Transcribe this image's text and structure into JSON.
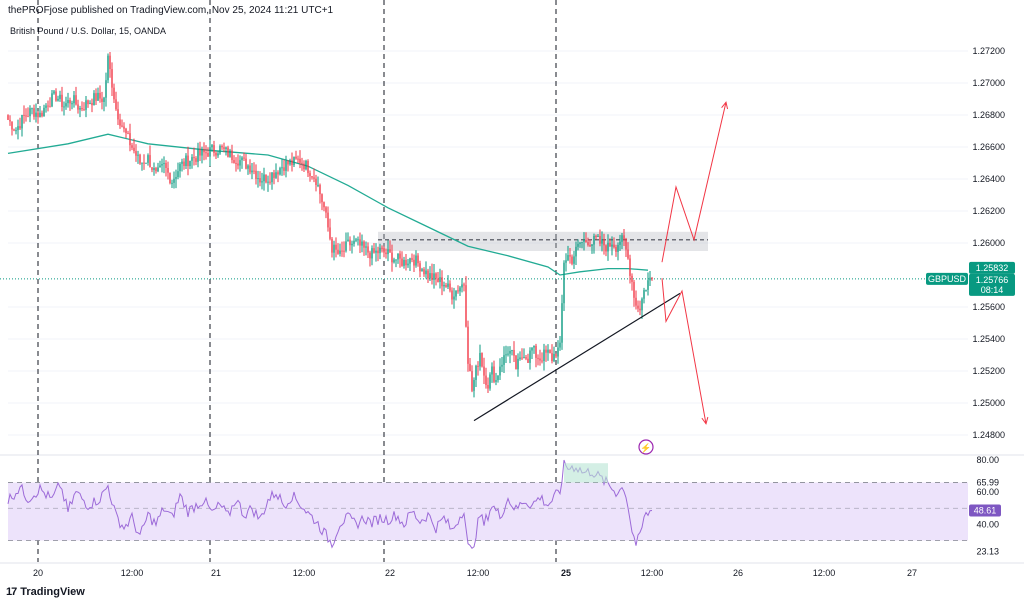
{
  "header": {
    "publisher_line": "thePROFjose published on TradingView.com, Nov 25, 2024 11:21 UTC+1",
    "symbol_line": "British Pound / U.S. Dollar, 15, OANDA"
  },
  "branding": {
    "logo_glyph": "17",
    "name": "TradingView"
  },
  "colors": {
    "up": "#089981",
    "down": "#f23645",
    "ma": "#22ab94",
    "rsi": "#9c6ad8",
    "rsi_band": "#ede3fb",
    "forecast": "#f23645",
    "trendline": "#131722",
    "zone": "#b2b5be",
    "price_tag": "#089981",
    "rsi_tag": "#7e57c2"
  },
  "chart_data": [
    {
      "type": "candlestick",
      "symbol": "GBPUSD",
      "interval": "15",
      "ylim": [
        1.2475,
        1.273
      ],
      "y_ticks": [
        "1.27200",
        "1.27000",
        "1.26800",
        "1.26600",
        "1.26400",
        "1.26200",
        "1.26000",
        "1.25600",
        "1.25400",
        "1.25200",
        "1.25000",
        "1.24800"
      ],
      "x_ticks": [
        {
          "label": "20",
          "bold": false
        },
        {
          "label": "12:00",
          "bold": false
        },
        {
          "label": "21",
          "bold": false
        },
        {
          "label": "12:00",
          "bold": false
        },
        {
          "label": "22",
          "bold": false
        },
        {
          "label": "12:00",
          "bold": false
        },
        {
          "label": "25",
          "bold": true
        },
        {
          "label": "12:00",
          "bold": false
        },
        {
          "label": "26",
          "bold": false
        },
        {
          "label": "12:00",
          "bold": false
        },
        {
          "label": "27",
          "bold": false
        }
      ],
      "session_breaks": [
        "20",
        "21",
        "22",
        "25"
      ],
      "price_path": [
        [
          0,
          1.2677
        ],
        [
          4,
          1.2671
        ],
        [
          8,
          1.2679
        ],
        [
          12,
          1.2683
        ],
        [
          16,
          1.268
        ],
        [
          20,
          1.2688
        ],
        [
          24,
          1.2692
        ],
        [
          28,
          1.2686
        ],
        [
          32,
          1.269
        ],
        [
          36,
          1.2684
        ],
        [
          40,
          1.2688
        ],
        [
          44,
          1.2691
        ],
        [
          48,
          1.269
        ],
        [
          50,
          1.2715
        ],
        [
          52,
          1.27
        ],
        [
          54,
          1.2684
        ],
        [
          58,
          1.267
        ],
        [
          62,
          1.266
        ],
        [
          66,
          1.265
        ],
        [
          70,
          1.2653
        ],
        [
          74,
          1.2642
        ],
        [
          78,
          1.2648
        ],
        [
          82,
          1.2639
        ],
        [
          86,
          1.2648
        ],
        [
          90,
          1.2652
        ],
        [
          94,
          1.2654
        ],
        [
          98,
          1.2656
        ],
        [
          102,
          1.2658
        ],
        [
          106,
          1.2659
        ],
        [
          110,
          1.2656
        ],
        [
          114,
          1.2653
        ],
        [
          118,
          1.265
        ],
        [
          122,
          1.2647
        ],
        [
          126,
          1.264
        ],
        [
          130,
          1.2641
        ],
        [
          134,
          1.2645
        ],
        [
          138,
          1.2649
        ],
        [
          142,
          1.265
        ],
        [
          146,
          1.2652
        ],
        [
          150,
          1.2647
        ],
        [
          154,
          1.264
        ],
        [
          158,
          1.2622
        ],
        [
          162,
          1.2597
        ],
        [
          166,
          1.2592
        ],
        [
          170,
          1.2599
        ],
        [
          174,
          1.26
        ],
        [
          178,
          1.2596
        ],
        [
          182,
          1.2593
        ],
        [
          186,
          1.2595
        ],
        [
          190,
          1.2593
        ],
        [
          194,
          1.259
        ],
        [
          198,
          1.2588
        ],
        [
          202,
          1.2591
        ],
        [
          206,
          1.2586
        ],
        [
          210,
          1.258
        ],
        [
          214,
          1.2577
        ],
        [
          218,
          1.2575
        ],
        [
          222,
          1.2568
        ],
        [
          226,
          1.2573
        ],
        [
          228,
          1.2575
        ],
        [
          230,
          1.2528
        ],
        [
          232,
          1.2508
        ],
        [
          234,
          1.252
        ],
        [
          236,
          1.2532
        ],
        [
          238,
          1.2518
        ],
        [
          240,
          1.2512
        ],
        [
          242,
          1.252
        ],
        [
          244,
          1.2514
        ],
        [
          246,
          1.2524
        ],
        [
          248,
          1.2528
        ],
        [
          250,
          1.2533
        ],
        [
          252,
          1.253
        ],
        [
          254,
          1.2522
        ],
        [
          256,
          1.2526
        ],
        [
          258,
          1.2532
        ],
        [
          260,
          1.2528
        ],
        [
          262,
          1.2534
        ],
        [
          264,
          1.253
        ],
        [
          266,
          1.2528
        ],
        [
          268,
          1.253
        ],
        [
          270,
          1.2531
        ],
        [
          272,
          1.2528
        ],
        [
          274,
          1.2532
        ],
        [
          276,
          1.2534
        ],
        [
          278,
          1.2589
        ],
        [
          280,
          1.2592
        ],
        [
          282,
          1.259
        ],
        [
          284,
          1.2595
        ],
        [
          286,
          1.26
        ],
        [
          288,
          1.2601
        ],
        [
          290,
          1.2602
        ],
        [
          292,
          1.26
        ],
        [
          294,
          1.2602
        ],
        [
          296,
          1.26
        ],
        [
          298,
          1.2599
        ],
        [
          300,
          1.2597
        ],
        [
          302,
          1.2601
        ],
        [
          304,
          1.2598
        ],
        [
          306,
          1.2602
        ],
        [
          308,
          1.26
        ],
        [
          310,
          1.259
        ],
        [
          312,
          1.2576
        ],
        [
          314,
          1.2561
        ],
        [
          316,
          1.256
        ],
        [
          318,
          1.257
        ],
        [
          320,
          1.2576
        ],
        [
          322,
          1.2578
        ]
      ],
      "moving_average": [
        [
          0,
          1.2656
        ],
        [
          30,
          1.2662
        ],
        [
          50,
          1.2668
        ],
        [
          70,
          1.2662
        ],
        [
          100,
          1.2658
        ],
        [
          130,
          1.2655
        ],
        [
          150,
          1.2648
        ],
        [
          170,
          1.2636
        ],
        [
          190,
          1.2622
        ],
        [
          210,
          1.261
        ],
        [
          230,
          1.2598
        ],
        [
          250,
          1.2592
        ],
        [
          270,
          1.2585
        ],
        [
          276,
          1.258
        ],
        [
          286,
          1.2582
        ],
        [
          300,
          1.2584
        ],
        [
          310,
          1.2584
        ],
        [
          320,
          1.2583
        ]
      ],
      "resistance_zone": [
        1.2598,
        1.2604
      ],
      "resistance_level": 1.2602,
      "trendline": [
        [
          233,
          1.2489
        ],
        [
          336,
          1.25685
        ]
      ],
      "forecast_up": [
        [
          327,
          1.2588
        ],
        [
          334,
          1.2635
        ],
        [
          343,
          1.2602
        ],
        [
          359,
          1.2688
        ]
      ],
      "forecast_down": [
        [
          327,
          1.2578
        ],
        [
          329,
          1.2551
        ],
        [
          337,
          1.257
        ],
        [
          349,
          1.2487
        ]
      ],
      "last_price_line": 1.25776,
      "price_labels": [
        {
          "text": "1.25832",
          "style": "outline"
        },
        {
          "text": "GBPUSD",
          "style": "solid"
        },
        {
          "text": "1.25766",
          "style": "solid"
        },
        {
          "text": "08:14",
          "style": "solid"
        }
      ],
      "marker_glyph": "⚡"
    },
    {
      "type": "line",
      "name": "RSI",
      "ylim": [
        21,
        80
      ],
      "y_ticks": [
        "80.00",
        "65.99",
        "60.00",
        "40.00",
        "23.13"
      ],
      "overbought": 65.99,
      "oversold": 30,
      "mid": 50,
      "current_value_label": "48.61",
      "values": [
        [
          0,
          55
        ],
        [
          6,
          63
        ],
        [
          10,
          56
        ],
        [
          16,
          62
        ],
        [
          22,
          55
        ],
        [
          26,
          65
        ],
        [
          30,
          48
        ],
        [
          34,
          60
        ],
        [
          40,
          52
        ],
        [
          46,
          56
        ],
        [
          50,
          64
        ],
        [
          54,
          45
        ],
        [
          58,
          38
        ],
        [
          62,
          44
        ],
        [
          66,
          32
        ],
        [
          70,
          46
        ],
        [
          74,
          40
        ],
        [
          78,
          50
        ],
        [
          82,
          44
        ],
        [
          86,
          58
        ],
        [
          90,
          48
        ],
        [
          94,
          52
        ],
        [
          98,
          55
        ],
        [
          102,
          47
        ],
        [
          106,
          52
        ],
        [
          110,
          45
        ],
        [
          114,
          56
        ],
        [
          118,
          46
        ],
        [
          122,
          50
        ],
        [
          126,
          43
        ],
        [
          130,
          55
        ],
        [
          134,
          60
        ],
        [
          138,
          52
        ],
        [
          142,
          58
        ],
        [
          146,
          53
        ],
        [
          150,
          47
        ],
        [
          154,
          42
        ],
        [
          158,
          35
        ],
        [
          162,
          28
        ],
        [
          166,
          41
        ],
        [
          170,
          44
        ],
        [
          174,
          40
        ],
        [
          178,
          44
        ],
        [
          182,
          41
        ],
        [
          186,
          44
        ],
        [
          190,
          43
        ],
        [
          194,
          46
        ],
        [
          198,
          40
        ],
        [
          202,
          48
        ],
        [
          206,
          42
        ],
        [
          210,
          46
        ],
        [
          214,
          38
        ],
        [
          218,
          44
        ],
        [
          222,
          36
        ],
        [
          226,
          45
        ],
        [
          228,
          50
        ],
        [
          230,
          26
        ],
        [
          232,
          23
        ],
        [
          234,
          35
        ],
        [
          236,
          46
        ],
        [
          238,
          40
        ],
        [
          242,
          52
        ],
        [
          246,
          45
        ],
        [
          250,
          56
        ],
        [
          254,
          49
        ],
        [
          258,
          55
        ],
        [
          262,
          52
        ],
        [
          266,
          57
        ],
        [
          270,
          52
        ],
        [
          274,
          58
        ],
        [
          276,
          60
        ],
        [
          278,
          78
        ],
        [
          280,
          75
        ],
        [
          284,
          76
        ],
        [
          288,
          72
        ],
        [
          292,
          73
        ],
        [
          296,
          69
        ],
        [
          300,
          65
        ],
        [
          304,
          60
        ],
        [
          308,
          63
        ],
        [
          310,
          52
        ],
        [
          312,
          36
        ],
        [
          314,
          28
        ],
        [
          316,
          32
        ],
        [
          318,
          44
        ],
        [
          320,
          47
        ],
        [
          322,
          48.6
        ]
      ]
    }
  ]
}
